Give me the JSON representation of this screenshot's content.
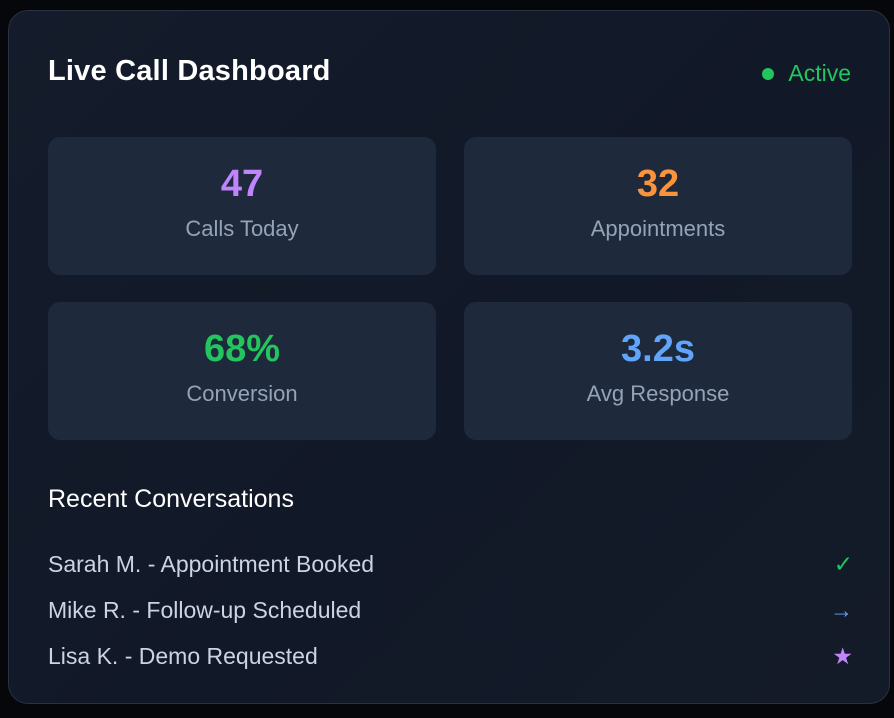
{
  "header": {
    "title": "Live Call Dashboard",
    "status": "Active",
    "status_color": "#22c55e"
  },
  "stats": [
    {
      "value": "47",
      "label": "Calls Today",
      "color": "#c084fc"
    },
    {
      "value": "32",
      "label": "Appointments",
      "color": "#fb923c"
    },
    {
      "value": "68%",
      "label": "Conversion",
      "color": "#22c55e"
    },
    {
      "value": "3.2s",
      "label": "Avg Response",
      "color": "#60a5fa"
    }
  ],
  "recent": {
    "title": "Recent Conversations",
    "items": [
      {
        "text": "Sarah M. - Appointment Booked",
        "icon": "check-icon",
        "glyph": "✓",
        "color": "#22c55e"
      },
      {
        "text": "Mike R. - Follow-up Scheduled",
        "icon": "arrow-right-icon",
        "glyph": "→",
        "color": "#60a5fa"
      },
      {
        "text": "Lisa K. - Demo Requested",
        "icon": "star-icon",
        "glyph": "★",
        "color": "#c084fc"
      }
    ]
  }
}
